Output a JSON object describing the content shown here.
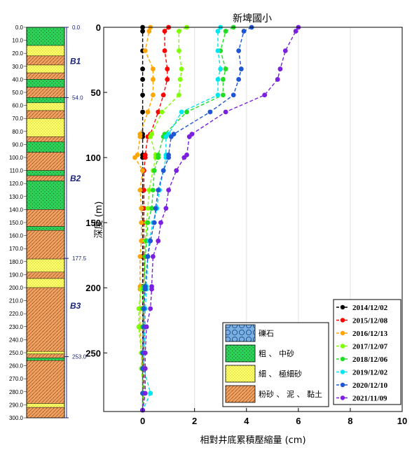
{
  "chart_data": {
    "type": "line",
    "title": "新埤國小",
    "xlabel": "相對井底累積壓縮量 (cm)",
    "ylabel": "深度 (m)",
    "xlim": [
      -1.5,
      10
    ],
    "ylim": [
      295,
      0
    ],
    "xticks": [
      0,
      2,
      4,
      6,
      8,
      10
    ],
    "yticks": [
      0,
      50,
      100,
      150,
      200,
      250
    ],
    "grid": "vertical",
    "legend_position": "bottom-right",
    "depths": [
      0,
      3,
      18,
      32,
      40,
      52,
      65,
      82,
      84,
      98,
      100,
      110,
      125,
      139,
      150,
      164,
      176,
      199,
      201,
      216,
      230,
      250,
      262,
      281,
      294
    ],
    "series": [
      {
        "name": "2014/12/02",
        "color": "#000000",
        "values": [
          0,
          0,
          0,
          0,
          0,
          0,
          0,
          0,
          0,
          0,
          0,
          0,
          0,
          0,
          0,
          0,
          0,
          0,
          0,
          0,
          0,
          0,
          0,
          0,
          0
        ]
      },
      {
        "name": "2015/12/08",
        "color": "#ff0000",
        "values": [
          1.0,
          0.85,
          0.85,
          0.95,
          0.95,
          0.8,
          0.6,
          0.3,
          0.2,
          0.1,
          0.1,
          0.05,
          0.05,
          0.05,
          0.05,
          0.05,
          0.05,
          0.05,
          0.05,
          0.05,
          0.05,
          0.05,
          0.05,
          0.05,
          0.0
        ]
      },
      {
        "name": "2016/12/13",
        "color": "#ffa500",
        "values": [
          0.3,
          0.25,
          0.1,
          0.4,
          0.4,
          0.4,
          0.2,
          -0.1,
          -0.1,
          -0.2,
          -0.3,
          0.0,
          -0.1,
          -0.05,
          -0.05,
          -0.05,
          -0.1,
          -0.1,
          -0.1,
          -0.1,
          -0.1,
          -0.05,
          0.0,
          0.0,
          0.0
        ]
      },
      {
        "name": "2017/12/07",
        "color": "#7fff00",
        "values": [
          1.7,
          1.4,
          1.4,
          1.5,
          1.45,
          1.4,
          0.75,
          0.35,
          0.3,
          0.5,
          0.5,
          0.4,
          0.25,
          0.2,
          0.15,
          0.1,
          0.1,
          0.05,
          -0.05,
          -0.15,
          -0.15,
          -0.05,
          -0.05,
          0.05,
          0.0
        ]
      },
      {
        "name": "2018/12/06",
        "color": "#22dd22",
        "values": [
          3.5,
          3.2,
          3.0,
          3.2,
          3.1,
          3.1,
          1.7,
          0.85,
          0.8,
          0.6,
          0.6,
          0.45,
          0.4,
          0.35,
          0.2,
          0.15,
          0.1,
          0.05,
          0.05,
          0.0,
          0.0,
          0.0,
          0.0,
          0.0,
          0.0
        ]
      },
      {
        "name": "2019/12/02",
        "color": "#00e5ee",
        "values": [
          3.0,
          2.9,
          2.9,
          3.0,
          2.9,
          2.9,
          1.5,
          1.0,
          0.9,
          0.9,
          0.9,
          0.8,
          0.65,
          0.55,
          0.4,
          0.25,
          0.2,
          0.15,
          0.15,
          0.1,
          0.1,
          0.05,
          0.05,
          0.3,
          0.0
        ]
      },
      {
        "name": "2020/12/10",
        "color": "#1e56d6",
        "values": [
          4.2,
          3.9,
          3.7,
          3.8,
          3.7,
          3.5,
          2.6,
          1.2,
          1.1,
          1.0,
          1.0,
          0.8,
          0.6,
          0.5,
          0.45,
          0.3,
          0.2,
          0.1,
          0.1,
          0.05,
          0.05,
          0.0,
          0.0,
          0.0,
          0.0
        ]
      },
      {
        "name": "2021/11/09",
        "color": "#7b1fe0",
        "values": [
          6.0,
          5.9,
          5.5,
          5.3,
          5.2,
          4.7,
          3.2,
          1.9,
          1.8,
          1.7,
          1.6,
          1.3,
          1.0,
          0.9,
          0.7,
          0.6,
          0.4,
          0.35,
          0.35,
          0.3,
          0.15,
          0.1,
          0.1,
          0.1,
          0.0
        ]
      }
    ]
  },
  "borehole": {
    "depth_ticks": [
      "0.0",
      "10.0",
      "20.0",
      "30.0",
      "40.0",
      "50.0",
      "60.0",
      "70.0",
      "80.0",
      "90.0",
      "100.0",
      "110.0",
      "120.0",
      "130.0",
      "140.0",
      "150.0",
      "160.0",
      "170.0",
      "180.0",
      "190.0",
      "200.0",
      "210.0",
      "220.0",
      "230.0",
      "240.0",
      "250.0",
      "260.0",
      "270.0",
      "280.0",
      "290.0",
      "300.0"
    ],
    "max_depth": 300,
    "layers": [
      {
        "top": 0,
        "bottom": 14,
        "type": "coarse"
      },
      {
        "top": 14,
        "bottom": 22,
        "type": "fine"
      },
      {
        "top": 22,
        "bottom": 29,
        "type": "silt"
      },
      {
        "top": 29,
        "bottom": 35,
        "type": "fine"
      },
      {
        "top": 35,
        "bottom": 40,
        "type": "silt"
      },
      {
        "top": 40,
        "bottom": 46,
        "type": "coarse"
      },
      {
        "top": 46,
        "bottom": 54,
        "type": "silt"
      },
      {
        "top": 54,
        "bottom": 58,
        "type": "coarse"
      },
      {
        "top": 58,
        "bottom": 64,
        "type": "fine"
      },
      {
        "top": 64,
        "bottom": 70,
        "type": "silt"
      },
      {
        "top": 70,
        "bottom": 84,
        "type": "fine"
      },
      {
        "top": 84,
        "bottom": 88,
        "type": "silt"
      },
      {
        "top": 88,
        "bottom": 96,
        "type": "coarse"
      },
      {
        "top": 96,
        "bottom": 110,
        "type": "silt"
      },
      {
        "top": 110,
        "bottom": 114,
        "type": "coarse"
      },
      {
        "top": 114,
        "bottom": 118,
        "type": "silt"
      },
      {
        "top": 118,
        "bottom": 140,
        "type": "coarse"
      },
      {
        "top": 140,
        "bottom": 153,
        "type": "silt"
      },
      {
        "top": 153,
        "bottom": 156,
        "type": "coarse"
      },
      {
        "top": 156,
        "bottom": 178,
        "type": "silt"
      },
      {
        "top": 178,
        "bottom": 188,
        "type": "fine"
      },
      {
        "top": 188,
        "bottom": 193,
        "type": "silt"
      },
      {
        "top": 193,
        "bottom": 200,
        "type": "fine"
      },
      {
        "top": 200,
        "bottom": 249,
        "type": "silt"
      },
      {
        "top": 249,
        "bottom": 251,
        "type": "fine"
      },
      {
        "top": 251,
        "bottom": 254,
        "type": "silt"
      },
      {
        "top": 254,
        "bottom": 256,
        "type": "coarse"
      },
      {
        "top": 256,
        "bottom": 289,
        "type": "silt"
      },
      {
        "top": 289,
        "bottom": 292,
        "type": "fine"
      },
      {
        "top": 292,
        "bottom": 300,
        "type": "silt"
      }
    ],
    "zones": [
      {
        "label": "B1",
        "label_depth": 26
      },
      {
        "label": "B2",
        "label_depth": 116
      },
      {
        "label": "B3",
        "label_depth": 214
      }
    ],
    "boundaries": [
      {
        "depth": 0,
        "label": "0.0"
      },
      {
        "depth": 54,
        "label": "54.0"
      },
      {
        "depth": 177.5,
        "label": "177.5"
      },
      {
        "depth": 253,
        "label": "253.0"
      },
      {
        "depth": 300,
        "label": ""
      }
    ]
  },
  "soil_legend": [
    {
      "type": "gravel",
      "label": "礫石"
    },
    {
      "type": "coarse",
      "label": "粗 、 中砂"
    },
    {
      "type": "fine",
      "label": "細 、 極細砂"
    },
    {
      "type": "silt",
      "label": "粉砂 、 泥 、 黏土"
    }
  ],
  "colors": {
    "coarse": "#2ed158",
    "fine": "#ffff66",
    "silt": "#f0a060",
    "gravel": "#7ab0e0",
    "zone": "#1a237e"
  }
}
